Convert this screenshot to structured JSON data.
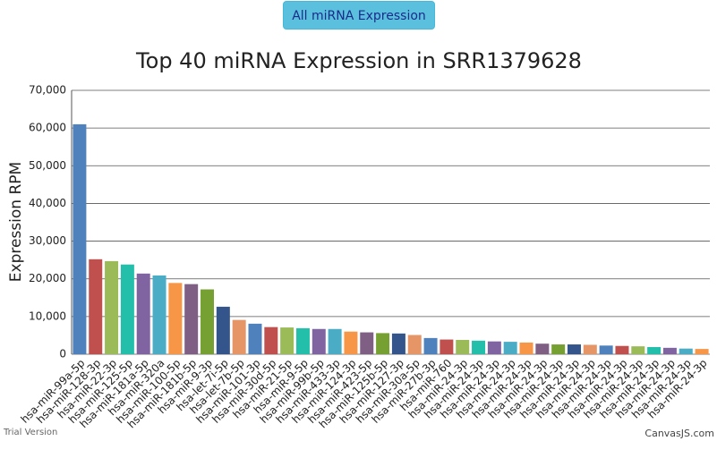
{
  "button": {
    "label": "All miRNA Expression"
  },
  "chart_data": {
    "type": "bar",
    "title": "Top 40 miRNA Expression in SRR1379628",
    "y_label": "Expression RPM",
    "categories": [
      "hsa-miR-99a-5p",
      "hsa-miR-128-3p",
      "hsa-miR-22-3p",
      "hsa-miR-125-5p",
      "hsa-miR-181a-5p",
      "hsa-miR-320a",
      "hsa-miR-100-5p",
      "hsa-miR-181b-5p",
      "hsa-miR-9-3p",
      "hsa-let-7i-5p",
      "hsa-let-7b-5p",
      "hsa-miR-101-3p",
      "hsa-miR-30d-5p",
      "hsa-miR-21-5p",
      "hsa-miR-9-5p",
      "hsa-miR-99b-5p",
      "hsa-miR-433-3p",
      "hsa-miR-124-3p",
      "hsa-miR-423-5p",
      "hsa-miR-125b-5p",
      "hsa-miR-127-3p",
      "hsa-miR-30a-5p",
      "hsa-miR-27b-3p",
      "hsa-miR-760",
      "hsa-miR-24-3p",
      "hsa-miR-24-3p",
      "hsa-miR-24-3p",
      "hsa-miR-24-3p",
      "hsa-miR-24-3p",
      "hsa-miR-24-3p",
      "hsa-miR-24-3p",
      "hsa-miR-24-3p",
      "hsa-miR-24-3p",
      "hsa-miR-24-3p",
      "hsa-miR-24-3p",
      "hsa-miR-24-3p",
      "hsa-miR-24-3p",
      "hsa-miR-24-3p",
      "hsa-miR-24-3p",
      "hsa-miR-24-3p"
    ],
    "values": [
      61000,
      25200,
      24700,
      23800,
      21400,
      20900,
      18900,
      18600,
      17200,
      12600,
      9100,
      8100,
      7200,
      7100,
      6900,
      6700,
      6700,
      6000,
      5800,
      5600,
      5500,
      5100,
      4300,
      3900,
      3800,
      3600,
      3400,
      3300,
      3100,
      2800,
      2600,
      2600,
      2500,
      2300,
      2200,
      2100,
      1900,
      1700,
      1500,
      1400
    ],
    "colors": [
      "#4F81BC",
      "#C0504E",
      "#9BBB58",
      "#23BFAA",
      "#8064A1",
      "#4AACC5",
      "#F79647",
      "#7F6084",
      "#77A033",
      "#33558B",
      "#E59566"
    ],
    "ylim": [
      0,
      70000
    ],
    "yticks": [
      0,
      {
        "value": 10000,
        "label": "10,000"
      },
      {
        "value": 20000,
        "label": "20,000"
      },
      {
        "value": 30000,
        "label": "30,000"
      },
      {
        "value": 40000,
        "label": "40,000"
      },
      {
        "value": 50000,
        "label": "50,000"
      },
      {
        "value": 60000,
        "label": "60,000"
      },
      {
        "value": 70000,
        "label": "70,000"
      }
    ],
    "grid": true,
    "trial_note": "Trial Version",
    "credit": "CanvasJS.com"
  }
}
